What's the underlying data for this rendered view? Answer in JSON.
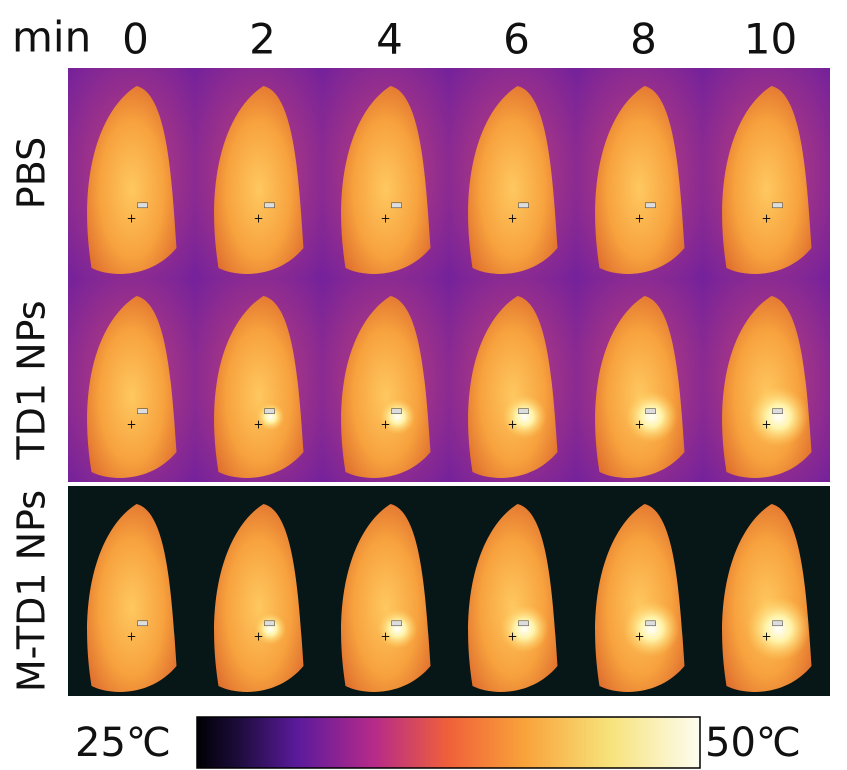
{
  "header": {
    "unit": "min",
    "times": [
      "0",
      "2",
      "4",
      "6",
      "8",
      "10"
    ]
  },
  "rows": [
    "PBS",
    "TD1 NPs",
    "M-TD1 NPs"
  ],
  "colorbar": {
    "min_label": "25℃",
    "max_label": "50℃"
  }
}
